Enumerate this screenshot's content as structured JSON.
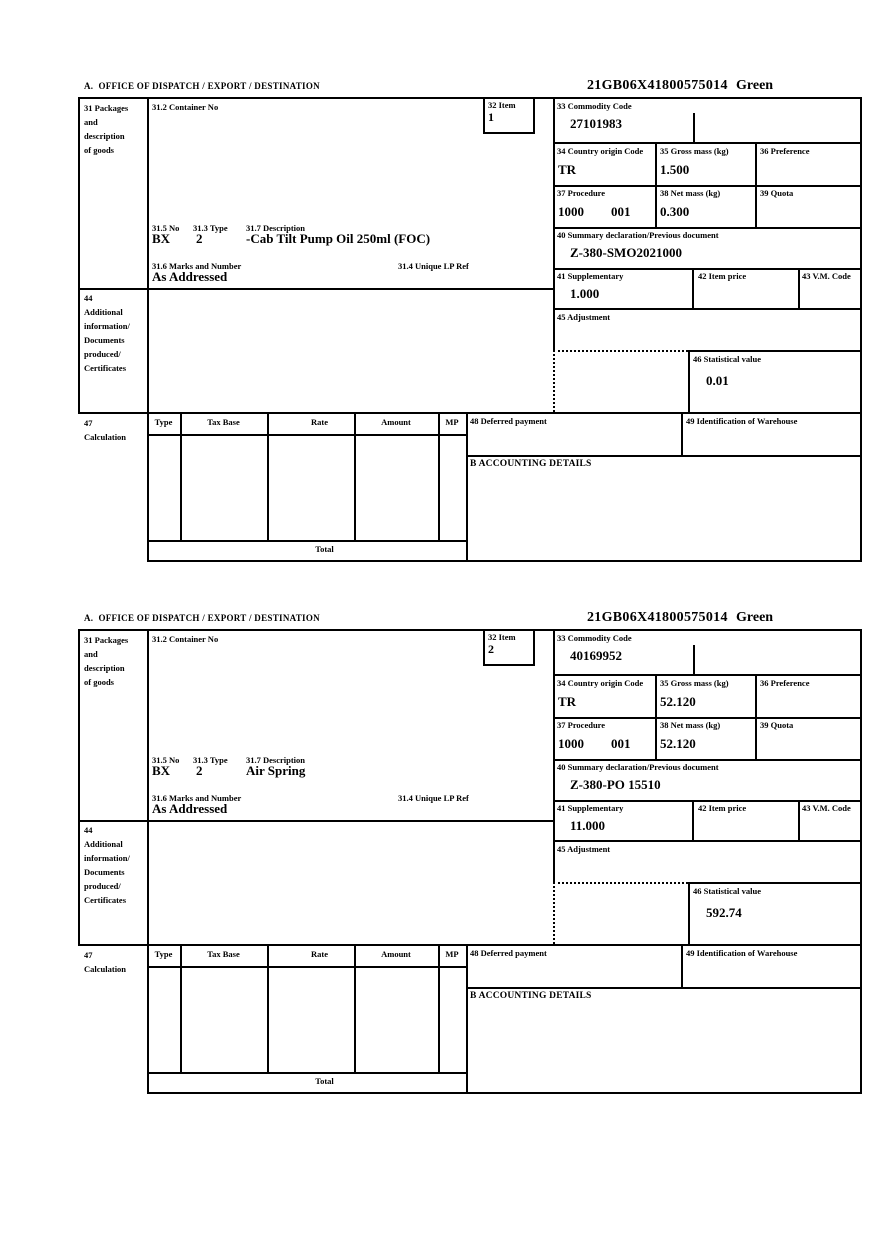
{
  "colors": {
    "ink": "#000000",
    "paper": "#ffffff"
  },
  "labels": {
    "office": "A.  OFFICE OF DISPATCH / EXPORT / DESTINATION",
    "packages_lines": [
      "31 Packages",
      "and",
      "description",
      "of goods"
    ],
    "container_no": "31.2 Container No",
    "item": "32 Item",
    "commodity_code": "33 Commodity Code",
    "country_origin": "34 Country origin Code",
    "gross_mass": "35 Gross mass (kg)",
    "preference": "36 Preference",
    "procedure": "37 Procedure",
    "net_mass": "38 Net mass (kg)",
    "quota": "39 Quota",
    "summary_declaration": "40 Summary declaration/Previous document",
    "supplementary": "41 Supplementary",
    "item_price": "42 Item price",
    "vm_code": "43 V.M. Code",
    "adjustment": "45 Adjustment",
    "statistical_value": "46 Statistical value",
    "no_315": "31.5 No",
    "type_313": "31.3 Type",
    "description_317": "31.7 Description",
    "marks_316": "31.6 Marks and Number",
    "lp_ref_314": "31.4 Unique LP Ref",
    "additional_lines": [
      "44",
      "Additional",
      "information/",
      "Documents",
      "produced/",
      "Certificates"
    ],
    "calculation_lines": [
      "47",
      "Calculation"
    ],
    "calc_headers": [
      "Type",
      "Tax Base",
      "Rate",
      "Amount",
      "MP"
    ],
    "total": "Total",
    "deferred_payment": "48 Deferred payment",
    "warehouse": "49 Identification of Warehouse",
    "accounting_details": "B ACCOUNTING DETAILS"
  },
  "forms": [
    {
      "header_ref": "21GB06X41800575014",
      "header_status": "Green",
      "values": {
        "item_no": "1",
        "commodity_code": "27101983",
        "country_origin": "TR",
        "gross_mass": "1.500",
        "procedure": [
          "1000",
          "001"
        ],
        "net_mass": "0.300",
        "previous_document": "Z-380-SMO2021000",
        "supplementary": "1.000",
        "statistical_value": "0.01",
        "package_no": "BX",
        "package_type": "2",
        "description": "-Cab Tilt Pump Oil 250ml (FOC)",
        "marks": "As Addressed"
      }
    },
    {
      "header_ref": "21GB06X41800575014",
      "header_status": "Green",
      "values": {
        "item_no": "2",
        "commodity_code": "40169952",
        "country_origin": "TR",
        "gross_mass": "52.120",
        "procedure": [
          "1000",
          "001"
        ],
        "net_mass": "52.120",
        "previous_document": "Z-380-PO 15510",
        "supplementary": "11.000",
        "statistical_value": "592.74",
        "package_no": "BX",
        "package_type": "2",
        "description": "Air Spring",
        "marks": "As Addressed"
      }
    }
  ]
}
